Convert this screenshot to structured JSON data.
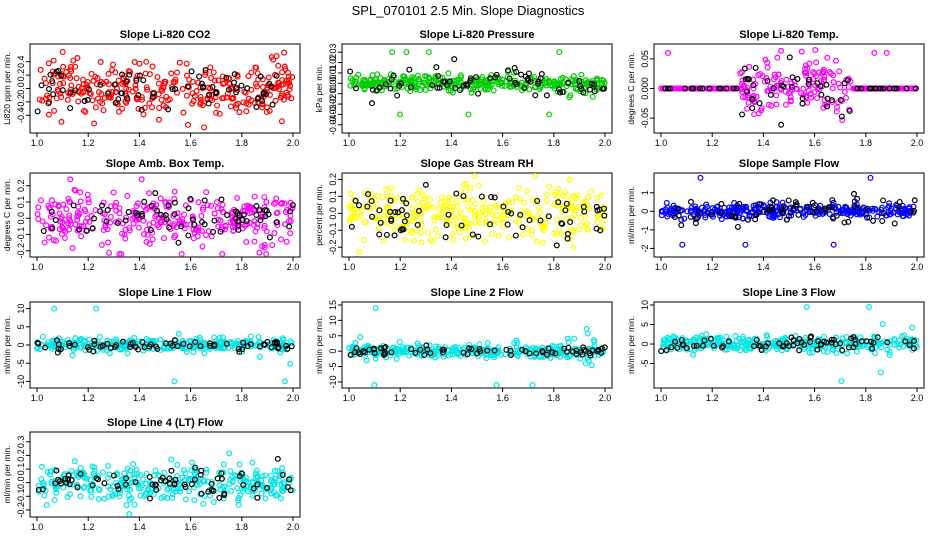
{
  "chart_data": {
    "type": "scatter",
    "title": "SPL_070101  2.5 Min. Slope Diagnostics",
    "panels": [
      {
        "title": "Slope Li-820 CO2",
        "ylabel": "Li820 ppm per min.",
        "color": "#ff0000",
        "xlim": [
          1.0,
          2.0
        ],
        "ylim": [
          -0.62,
          0.62
        ],
        "yticks": [
          -0.4,
          -0.2,
          0.0,
          0.2,
          0.4
        ],
        "ytick_labels": [
          "-0.4",
          "-0.2",
          "0.0",
          "0.2",
          "0.4"
        ],
        "xticks": [
          1.0,
          1.2,
          1.4,
          1.6,
          1.8,
          2.0
        ],
        "xtick_labels": [
          "1.0",
          "1.2",
          "1.4",
          "1.6",
          "1.8",
          "2.0"
        ],
        "series_colored": {
          "n": 320,
          "spread": 0.2,
          "outlier": 0.58
        },
        "series_black": {
          "n": 70,
          "spread": 0.17
        }
      },
      {
        "title": "Slope Li-820 Pressure",
        "ylabel": "kPa per min.",
        "color": "#00cc00",
        "xlim": [
          1.0,
          2.0
        ],
        "ylim": [
          -0.045,
          0.035
        ],
        "yticks": [
          -0.04,
          -0.03,
          -0.02,
          -0.01,
          0.0,
          0.01,
          0.02,
          0.03
        ],
        "ytick_labels": [
          "-0.04",
          "-0.03",
          "-0.02",
          "-0.01",
          "0.00",
          "0.01",
          "0.02",
          "0.03"
        ],
        "xticks": [
          1.0,
          1.2,
          1.4,
          1.6,
          1.8,
          2.0
        ],
        "xtick_labels": [
          "1.0",
          "1.2",
          "1.4",
          "1.6",
          "1.8",
          "2.0"
        ],
        "series_colored": {
          "n": 320,
          "spread": 0.004,
          "outlier": 0.03
        },
        "series_black": {
          "n": 70,
          "spread": 0.007
        }
      },
      {
        "title": "Slope Li-820 Temp.",
        "ylabel": "degrees C per min.",
        "color": "#ff00ff",
        "xlim": [
          1.0,
          2.0
        ],
        "ylim": [
          -0.07,
          0.07
        ],
        "yticks": [
          -0.05,
          0.0,
          0.05
        ],
        "ytick_labels": [
          "-0.05",
          "0.000",
          "0.05"
        ],
        "xticks": [
          1.0,
          1.2,
          1.4,
          1.6,
          1.8,
          2.0
        ],
        "xtick_labels": [
          "1.0",
          "1.2",
          "1.4",
          "1.6",
          "1.8",
          "2.0"
        ],
        "series_colored": {
          "n": 320,
          "spread": 0.025,
          "outlier": 0.06
        },
        "series_black": {
          "n": 70,
          "spread": 0.02
        }
      },
      {
        "title": "Slope Amb. Box Temp.",
        "ylabel": "degrees C per min.",
        "color": "#ff00ff",
        "xlim": [
          1.0,
          2.0
        ],
        "ylim": [
          -0.22,
          0.26
        ],
        "yticks": [
          -0.2,
          -0.1,
          0.0,
          0.1,
          0.2
        ],
        "ytick_labels": [
          "-0.2",
          "-0.1",
          "0.0",
          "0.1",
          "0.2"
        ],
        "xticks": [
          1.0,
          1.2,
          1.4,
          1.6,
          1.8,
          2.0
        ],
        "xtick_labels": [
          "1.0",
          "1.2",
          "1.4",
          "1.6",
          "1.8",
          "2.0"
        ],
        "series_colored": {
          "n": 320,
          "spread": 0.08,
          "outlier": 0.24
        },
        "series_black": {
          "n": 70,
          "spread": 0.06
        }
      },
      {
        "title": "Slope Gas Stream RH",
        "ylabel": "percent per min.",
        "color": "#ffff00",
        "xlim": [
          1.0,
          2.0
        ],
        "ylim": [
          -0.24,
          0.22
        ],
        "yticks": [
          -0.2,
          -0.1,
          0.0,
          0.1,
          0.2
        ],
        "ytick_labels": [
          "-0.2",
          "-0.1",
          "0.0",
          "0.1",
          "0.2"
        ],
        "xticks": [
          1.0,
          1.2,
          1.4,
          1.6,
          1.8,
          2.0
        ],
        "xtick_labels": [
          "1.0",
          "1.2",
          "1.4",
          "1.6",
          "1.8",
          "2.0"
        ],
        "series_colored": {
          "n": 320,
          "spread": 0.08,
          "outlier": 0.2
        },
        "series_black": {
          "n": 70,
          "spread": 0.08
        }
      },
      {
        "title": "Slope Sample Flow",
        "ylabel": "ml/min per min.",
        "color": "#0000ff",
        "xlim": [
          1.0,
          2.0
        ],
        "ylim": [
          -2.3,
          1.9
        ],
        "yticks": [
          -2,
          -1,
          0,
          1
        ],
        "ytick_labels": [
          "-2",
          "-1",
          "0",
          "1"
        ],
        "xticks": [
          1.0,
          1.2,
          1.4,
          1.6,
          1.8,
          2.0
        ],
        "xtick_labels": [
          "1.0",
          "1.2",
          "1.4",
          "1.6",
          "1.8",
          "2.0"
        ],
        "series_colored": {
          "n": 320,
          "spread": 0.18,
          "outlier": 1.8
        },
        "series_black": {
          "n": 70,
          "spread": 0.35
        }
      },
      {
        "title": "Slope Line 1 Flow",
        "ylabel": "ml/min per min.",
        "color": "#00e5e5",
        "xlim": [
          1.0,
          2.0
        ],
        "ylim": [
          -11,
          11
        ],
        "yticks": [
          -10,
          -5,
          0,
          5,
          10
        ],
        "ytick_labels": [
          "-10",
          "-5",
          "0",
          "5",
          "10"
        ],
        "xticks": [
          1.0,
          1.2,
          1.4,
          1.6,
          1.8,
          2.0
        ],
        "xtick_labels": [
          "1.0",
          "1.2",
          "1.4",
          "1.6",
          "1.8",
          "2.0"
        ],
        "series_colored": {
          "n": 320,
          "spread": 0.8,
          "outlier": 10
        },
        "series_black": {
          "n": 70,
          "spread": 0.7
        }
      },
      {
        "title": "Slope Line 2 Flow",
        "ylabel": "ml/min per min.",
        "color": "#00e5e5",
        "xlim": [
          1.0,
          2.0
        ],
        "ylim": [
          -11,
          15
        ],
        "yticks": [
          -10,
          -5,
          0,
          5,
          10,
          15
        ],
        "ytick_labels": [
          "-10",
          "-5",
          "0",
          "5",
          "10",
          "15"
        ],
        "xticks": [
          1.0,
          1.2,
          1.4,
          1.6,
          1.8,
          2.0
        ],
        "xtick_labels": [
          "1.0",
          "1.2",
          "1.4",
          "1.6",
          "1.8",
          "2.0"
        ],
        "series_colored": {
          "n": 320,
          "spread": 1.0,
          "outlier": 14
        },
        "series_black": {
          "n": 70,
          "spread": 0.9
        }
      },
      {
        "title": "Slope Line 3 Flow",
        "ylabel": "ml/min per min.",
        "color": "#00e5e5",
        "xlim": [
          1.0,
          2.0
        ],
        "ylim": [
          -10.5,
          10
        ],
        "yticks": [
          -5,
          0,
          5,
          10
        ],
        "ytick_labels": [
          "-5",
          "0",
          "5",
          "10"
        ],
        "xticks": [
          1.0,
          1.2,
          1.4,
          1.6,
          1.8,
          2.0
        ],
        "xtick_labels": [
          "1.0",
          "1.2",
          "1.4",
          "1.6",
          "1.8",
          "2.0"
        ],
        "series_colored": {
          "n": 320,
          "spread": 1.0,
          "outlier": 9.5
        },
        "series_black": {
          "n": 70,
          "spread": 1.0
        }
      },
      {
        "title": "Slope Line 4 (LT) Flow",
        "ylabel": "ml/min per min.",
        "color": "#00e5e5",
        "xlim": [
          1.0,
          2.0
        ],
        "ylim": [
          -0.23,
          0.35
        ],
        "yticks": [
          -0.2,
          -0.1,
          0.0,
          0.1,
          0.2,
          0.3
        ],
        "ytick_labels": [
          "-0.2",
          "-0.1",
          "0.0",
          "0.1",
          "0.2",
          "0.3"
        ],
        "xticks": [
          1.0,
          1.2,
          1.4,
          1.6,
          1.8,
          2.0
        ],
        "xtick_labels": [
          "1.0",
          "1.2",
          "1.4",
          "1.6",
          "1.8",
          "2.0"
        ],
        "series_colored": {
          "n": 320,
          "spread": 0.07,
          "outlier": 0.32
        },
        "series_black": {
          "n": 70,
          "spread": 0.06
        }
      }
    ]
  }
}
